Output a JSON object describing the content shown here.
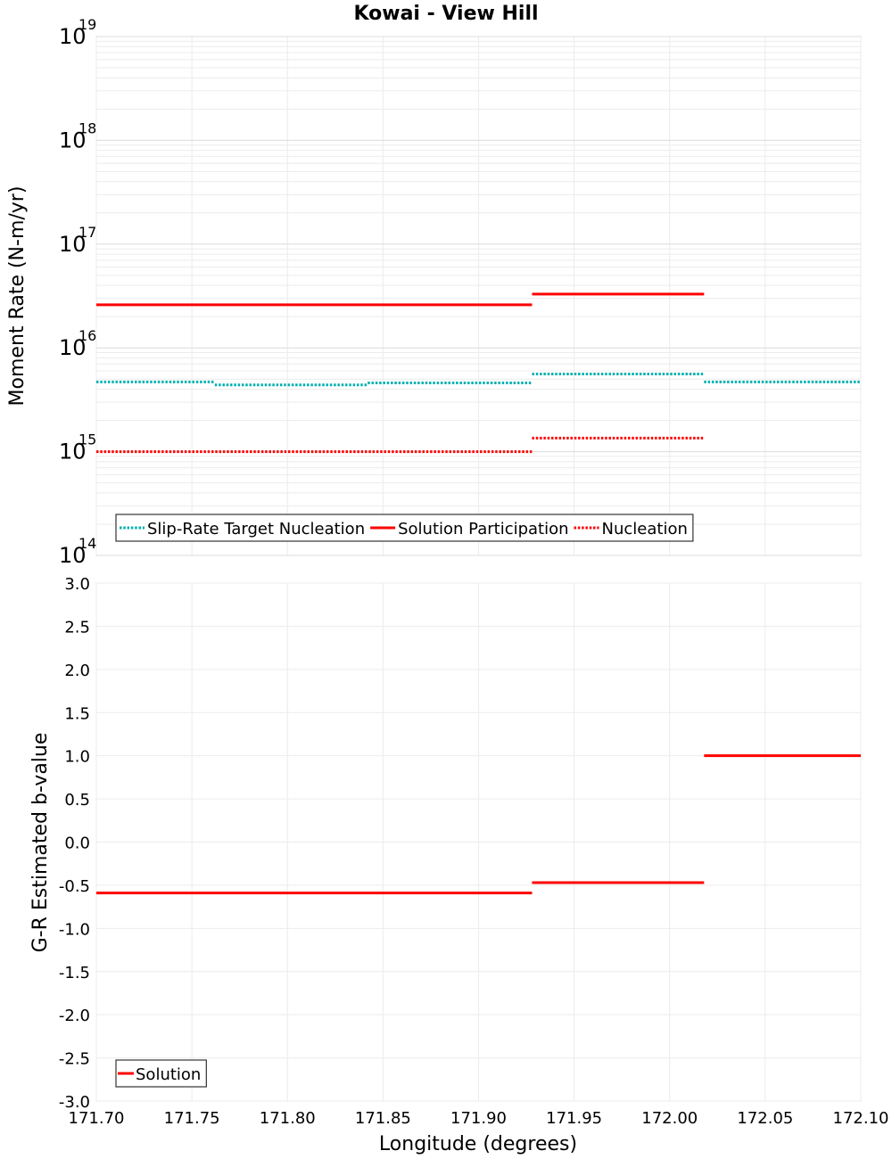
{
  "chart_data": [
    {
      "type": "line",
      "step": true,
      "title": "Kowai - View Hill",
      "xlabel": "",
      "ylabel": "Moment Rate (N-m/yr)",
      "xlim": [
        171.7,
        172.1
      ],
      "ylim": [
        100000000000000.0,
        1e+19
      ],
      "yscale": "log",
      "y_ticks": [
        {
          "base": "10",
          "exp": "14"
        },
        {
          "base": "10",
          "exp": "15"
        },
        {
          "base": "10",
          "exp": "16"
        },
        {
          "base": "10",
          "exp": "17"
        },
        {
          "base": "10",
          "exp": "18"
        },
        {
          "base": "10",
          "exp": "19"
        }
      ],
      "grid": true,
      "legend_position": "bottom-left",
      "series": [
        {
          "name": "Slip-Rate Target Nucleation",
          "color": "#00b0b0",
          "style": "dotted",
          "segments": [
            {
              "x0": 171.7,
              "x1": 171.762,
              "y": 4700000000000000.0
            },
            {
              "x0": 171.762,
              "x1": 171.842,
              "y": 4400000000000000.0
            },
            {
              "x0": 171.842,
              "x1": 171.928,
              "y": 4600000000000000.0
            },
            {
              "x0": 171.928,
              "x1": 172.018,
              "y": 5600000000000000.0
            },
            {
              "x0": 172.018,
              "x1": 172.1,
              "y": 4700000000000000.0
            }
          ]
        },
        {
          "name": "Solution Participation",
          "color": "#ff0000",
          "style": "solid",
          "segments": [
            {
              "x0": 171.7,
              "x1": 171.928,
              "y": 2.6e+16
            },
            {
              "x0": 171.928,
              "x1": 172.018,
              "y": 3.3e+16
            }
          ]
        },
        {
          "name": "Nucleation",
          "color": "#ff0000",
          "style": "dotted",
          "segments": [
            {
              "x0": 171.7,
              "x1": 171.928,
              "y": 1000000000000000.0
            },
            {
              "x0": 171.928,
              "x1": 172.018,
              "y": 1350000000000000.0
            }
          ]
        }
      ]
    },
    {
      "type": "line",
      "step": true,
      "title": "",
      "xlabel": "Longitude (degrees)",
      "ylabel": "G-R Estimated b-value",
      "xlim": [
        171.7,
        172.1
      ],
      "ylim": [
        -3.0,
        3.0
      ],
      "yscale": "linear",
      "x_ticks": [
        "171.70",
        "171.75",
        "171.80",
        "171.85",
        "171.90",
        "171.95",
        "172.00",
        "172.05",
        "172.10"
      ],
      "y_ticks": [
        "3.0",
        "2.5",
        "2.0",
        "1.5",
        "1.0",
        "0.5",
        "0.0",
        "-0.5",
        "-1.0",
        "-1.5",
        "-2.0",
        "-2.5",
        "-3.0"
      ],
      "grid": true,
      "legend_position": "bottom-left",
      "series": [
        {
          "name": "Solution",
          "color": "#ff0000",
          "style": "solid",
          "segments": [
            {
              "x0": 171.7,
              "x1": 171.928,
              "y": -0.59
            },
            {
              "x0": 171.928,
              "x1": 172.018,
              "y": -0.47
            },
            {
              "x0": 172.018,
              "x1": 172.1,
              "y": 1.0
            }
          ]
        }
      ]
    }
  ]
}
